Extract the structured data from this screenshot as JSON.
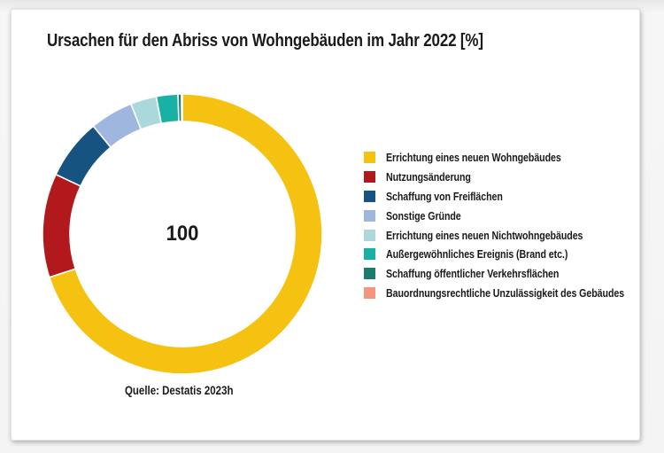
{
  "chart_data": {
    "type": "pie",
    "subtype": "donut",
    "title": "Ursachen für den Abriss von Wohngebäuden im Jahr 2022 [%]",
    "center_label": "100",
    "total": 100,
    "unit": "%",
    "source": "Quelle: Destatis 2023h",
    "legend_position": "right",
    "start_angle_deg": 0,
    "direction": "clockwise",
    "series": [
      {
        "name": "Errichtung eines neuen Wohngebäudes",
        "value": 70,
        "color": "#F5C211"
      },
      {
        "name": "Nutzungsänderung",
        "value": 12,
        "color": "#B2191C"
      },
      {
        "name": "Schaffung von Freiflächen",
        "value": 7,
        "color": "#175380"
      },
      {
        "name": "Sonstige Gründe",
        "value": 5,
        "color": "#9FB7DF"
      },
      {
        "name": "Errichtung eines neuen Nichtwohngebäudes",
        "value": 3,
        "color": "#ABD8DB"
      },
      {
        "name": "Außergewöhnliches Ereignis (Brand etc.)",
        "value": 2.5,
        "color": "#19B0A5"
      },
      {
        "name": "Schaffung öffentlicher Verkehrsflächen",
        "value": 0.4,
        "color": "#1B7B6E"
      },
      {
        "name": "Bauordnungsrechtliche Unzulässigkeit des Gebäudes",
        "value": 0.1,
        "color": "#F5947F"
      }
    ]
  }
}
